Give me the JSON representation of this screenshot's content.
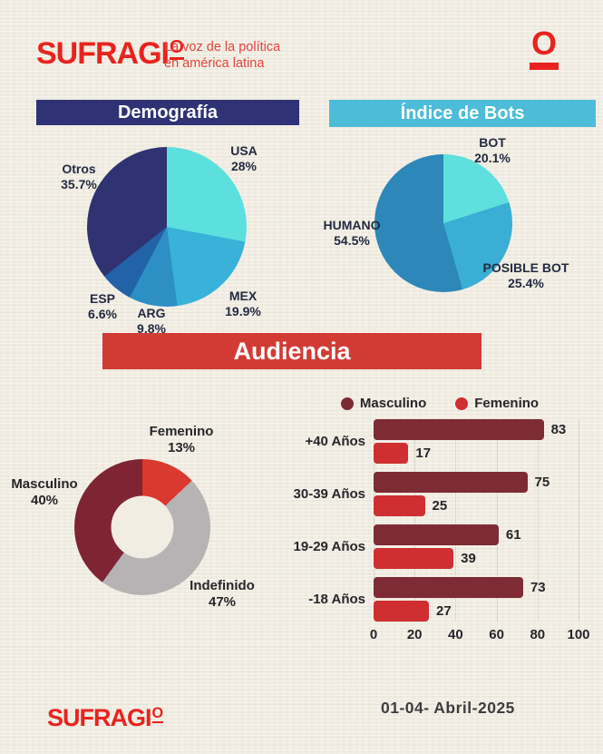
{
  "header": {
    "logo_main": "SUFRAGI",
    "logo_o": "O",
    "tagline_line1": "La voz de la política",
    "tagline_line2": "en américa latina",
    "mark": "O"
  },
  "sections": {
    "demografia_title": "Demografía",
    "bots_title": "Índice de Bots",
    "audiencia_title": "Audiencia"
  },
  "colors": {
    "brand_red": "#e8231e",
    "banner_navy": "#2f3274",
    "banner_cyan": "#4cbcd9",
    "banner_red": "#d23b34",
    "paper": "#f1ede3"
  },
  "chart_data": [
    {
      "id": "demografia-pie",
      "type": "pie",
      "title": "Demografía",
      "start_angle": "top",
      "direction": "clockwise",
      "slices": [
        {
          "label": "USA",
          "value": 28,
          "pct_text": "28%",
          "color": "#5ce0de"
        },
        {
          "label": "MEX",
          "value": 19.9,
          "pct_text": "19.9%",
          "color": "#38b2d8"
        },
        {
          "label": "ARG",
          "value": 9.8,
          "pct_text": "9.8%",
          "color": "#2e8fc4"
        },
        {
          "label": "ESP",
          "value": 6.6,
          "pct_text": "6.6%",
          "color": "#2263a8"
        },
        {
          "label": "Otros",
          "value": 35.7,
          "pct_text": "35.7%",
          "color": "#303371"
        }
      ]
    },
    {
      "id": "bots-pie",
      "type": "pie",
      "title": "Índice de Bots",
      "start_angle": "top",
      "direction": "clockwise",
      "slices": [
        {
          "label": "BOT",
          "value": 20.1,
          "pct_text": "20.1%",
          "color": "#5ee0de"
        },
        {
          "label": "POSIBLE BOT",
          "value": 25.4,
          "pct_text": "25.4%",
          "color": "#3aaed4"
        },
        {
          "label": "HUMANO",
          "value": 54.5,
          "pct_text": "54.5%",
          "color": "#2d87b8"
        }
      ]
    },
    {
      "id": "audiencia-donut",
      "type": "pie",
      "subtype": "donut",
      "start_angle": "top",
      "direction": "clockwise",
      "slices": [
        {
          "label": "Femenino",
          "value": 13,
          "pct_text": "13%",
          "color": "#d9392f"
        },
        {
          "label": "Indefinido",
          "value": 47,
          "pct_text": "47%",
          "color": "#b5b3b4"
        },
        {
          "label": "Masculino",
          "value": 40,
          "pct_text": "40%",
          "color": "#7f2433"
        }
      ]
    },
    {
      "id": "audiencia-bars",
      "type": "bar",
      "orientation": "horizontal",
      "categories": [
        "+40 Años",
        "30-39 Años",
        "19-29 Años",
        "-18 Años"
      ],
      "series": [
        {
          "name": "Masculino",
          "color": "#7d2b35",
          "values": [
            83,
            75,
            61,
            73
          ]
        },
        {
          "name": "Femenino",
          "color": "#cf2f30",
          "values": [
            17,
            25,
            39,
            27
          ]
        }
      ],
      "xlim": [
        0,
        100
      ],
      "xticks": [
        0,
        20,
        40,
        60,
        80,
        100
      ],
      "grid": true,
      "legend_position": "top"
    }
  ],
  "footer": {
    "logo_main": "SUFRAGI",
    "logo_o": "O",
    "date": "01-04- Abril-2025"
  }
}
